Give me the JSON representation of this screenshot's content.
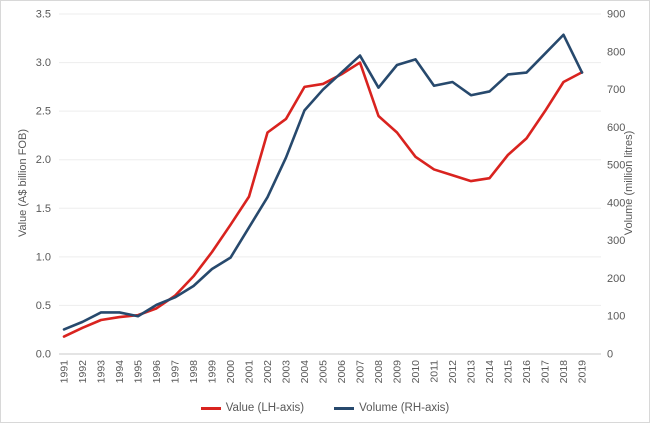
{
  "chart_data": {
    "type": "line",
    "title": "",
    "categories": [
      "1991",
      "1992",
      "1993",
      "1994",
      "1995",
      "1996",
      "1997",
      "1998",
      "1999",
      "2000",
      "2001",
      "2002",
      "2003",
      "2004",
      "2005",
      "2006",
      "2007",
      "2008",
      "2009",
      "2010",
      "2011",
      "2012",
      "2013",
      "2014",
      "2015",
      "2016",
      "2017",
      "2018",
      "2019"
    ],
    "series": [
      {
        "name": "Value (LH-axis)",
        "axis": "left",
        "color": "#d9231f",
        "values": [
          0.18,
          0.27,
          0.35,
          0.38,
          0.4,
          0.47,
          0.6,
          0.8,
          1.05,
          1.33,
          1.62,
          2.28,
          2.42,
          2.75,
          2.78,
          2.88,
          3.0,
          2.45,
          2.28,
          2.03,
          1.9,
          1.84,
          1.78,
          1.81,
          2.05,
          2.22,
          2.5,
          2.8,
          2.9
        ]
      },
      {
        "name": "Volume (RH-axis)",
        "axis": "right",
        "color": "#27496d",
        "values": [
          65,
          85,
          110,
          110,
          100,
          130,
          150,
          180,
          225,
          255,
          335,
          415,
          520,
          645,
          700,
          745,
          790,
          705,
          765,
          780,
          710,
          720,
          685,
          695,
          740,
          745,
          795,
          845,
          745
        ]
      }
    ],
    "left_axis": {
      "label": "Value (A$ billion FOB)",
      "min": 0.0,
      "max": 3.5,
      "step": 0.5,
      "ticks": [
        "0.0",
        "0.5",
        "1.0",
        "1.5",
        "2.0",
        "2.5",
        "3.0",
        "3.5"
      ]
    },
    "right_axis": {
      "label": "Volume (million litres)",
      "min": 0,
      "max": 900,
      "step": 100,
      "ticks": [
        "0",
        "100",
        "200",
        "300",
        "400",
        "500",
        "600",
        "700",
        "800",
        "900"
      ]
    },
    "grid": true,
    "legend_position": "bottom"
  },
  "colors": {
    "grid": "#ededed",
    "axis_line": "#c9c9c9",
    "tick_text": "#595959"
  }
}
